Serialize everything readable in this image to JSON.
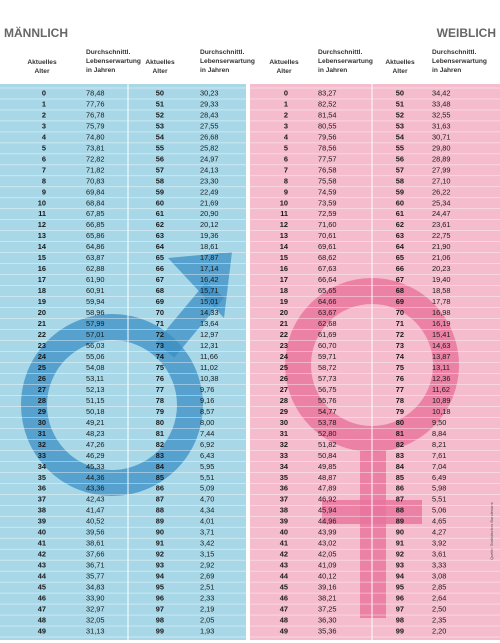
{
  "header": {
    "male_title": "MÄNNLICH",
    "female_title": "WEIBLICH",
    "age_header": [
      "Aktuelles",
      "Alter"
    ],
    "life_header": [
      "Durchschnittl.",
      "Lebenserwartung",
      "in Jahren"
    ]
  },
  "source": "Quelle: Statistisches Bundesamt",
  "male": {
    "rows": [
      [
        0,
        "78,48",
        50,
        "30,23"
      ],
      [
        1,
        "77,76",
        51,
        "29,33"
      ],
      [
        2,
        "76,78",
        52,
        "28,43"
      ],
      [
        3,
        "75,79",
        53,
        "27,55"
      ],
      [
        4,
        "74,80",
        54,
        "26,68"
      ],
      [
        5,
        "73,81",
        55,
        "25,82"
      ],
      [
        6,
        "72,82",
        56,
        "24,97"
      ],
      [
        7,
        "71,82",
        57,
        "24,13"
      ],
      [
        8,
        "70,83",
        58,
        "23,30"
      ],
      [
        9,
        "69,84",
        59,
        "22,49"
      ],
      [
        10,
        "68,84",
        60,
        "21,69"
      ],
      [
        11,
        "67,85",
        61,
        "20,90"
      ],
      [
        12,
        "66,85",
        62,
        "20,12"
      ],
      [
        13,
        "65,86",
        63,
        "19,36"
      ],
      [
        14,
        "64,86",
        64,
        "18,61"
      ],
      [
        15,
        "63,87",
        65,
        "17,87"
      ],
      [
        16,
        "62,88",
        66,
        "17,14"
      ],
      [
        17,
        "61,90",
        67,
        "16,42"
      ],
      [
        18,
        "60,91",
        68,
        "15,71"
      ],
      [
        19,
        "59,94",
        69,
        "15,01"
      ],
      [
        20,
        "58,96",
        70,
        "14,33"
      ],
      [
        21,
        "57,99",
        71,
        "13,64"
      ],
      [
        22,
        "57,01",
        72,
        "12,97"
      ],
      [
        23,
        "56,03",
        73,
        "12,31"
      ],
      [
        24,
        "55,06",
        74,
        "11,66"
      ],
      [
        25,
        "54,08",
        75,
        "11,02"
      ],
      [
        26,
        "53,11",
        76,
        "10,38"
      ],
      [
        27,
        "52,13",
        77,
        "9,76"
      ],
      [
        28,
        "51,15",
        78,
        "9,16"
      ],
      [
        29,
        "50,18",
        79,
        "8,57"
      ],
      [
        30,
        "49,21",
        80,
        "8,00"
      ],
      [
        31,
        "48,23",
        81,
        "7,44"
      ],
      [
        32,
        "47,26",
        82,
        "6,92"
      ],
      [
        33,
        "46,29",
        83,
        "6,43"
      ],
      [
        34,
        "45,33",
        84,
        "5,95"
      ],
      [
        35,
        "44,36",
        85,
        "5,51"
      ],
      [
        36,
        "43,36",
        86,
        "5,09"
      ],
      [
        37,
        "42,43",
        87,
        "4,70"
      ],
      [
        38,
        "41,47",
        88,
        "4,34"
      ],
      [
        39,
        "40,52",
        89,
        "4,01"
      ],
      [
        40,
        "39,56",
        90,
        "3,71"
      ],
      [
        41,
        "38,61",
        91,
        "3,42"
      ],
      [
        42,
        "37,66",
        92,
        "3,15"
      ],
      [
        43,
        "36,71",
        93,
        "2,92"
      ],
      [
        44,
        "35,77",
        94,
        "2,69"
      ],
      [
        45,
        "34,83",
        95,
        "2,51"
      ],
      [
        46,
        "33,90",
        96,
        "2,33"
      ],
      [
        47,
        "32,97",
        97,
        "2,19"
      ],
      [
        48,
        "32,05",
        98,
        "2,05"
      ],
      [
        49,
        "31,13",
        99,
        "1,93"
      ]
    ]
  },
  "female": {
    "rows": [
      [
        0,
        "83,27",
        50,
        "34,42"
      ],
      [
        1,
        "82,52",
        51,
        "33,48"
      ],
      [
        2,
        "81,54",
        52,
        "32,55"
      ],
      [
        3,
        "80,55",
        53,
        "31,63"
      ],
      [
        4,
        "79,56",
        54,
        "30,71"
      ],
      [
        5,
        "78,56",
        55,
        "29,80"
      ],
      [
        6,
        "77,57",
        56,
        "28,89"
      ],
      [
        7,
        "76,58",
        57,
        "27,99"
      ],
      [
        8,
        "75,58",
        58,
        "27,10"
      ],
      [
        9,
        "74,59",
        59,
        "26,22"
      ],
      [
        10,
        "73,59",
        60,
        "25,34"
      ],
      [
        11,
        "72,59",
        61,
        "24,47"
      ],
      [
        12,
        "71,60",
        62,
        "23,61"
      ],
      [
        13,
        "70,61",
        63,
        "22,75"
      ],
      [
        14,
        "69,61",
        64,
        "21,90"
      ],
      [
        15,
        "68,62",
        65,
        "21,06"
      ],
      [
        16,
        "67,63",
        66,
        "20,23"
      ],
      [
        17,
        "66,64",
        67,
        "19,40"
      ],
      [
        18,
        "65,65",
        68,
        "18,58"
      ],
      [
        19,
        "64,66",
        69,
        "17,78"
      ],
      [
        20,
        "63,67",
        70,
        "16,98"
      ],
      [
        21,
        "62,68",
        71,
        "16,19"
      ],
      [
        22,
        "61,69",
        72,
        "15,41"
      ],
      [
        23,
        "60,70",
        73,
        "14,63"
      ],
      [
        24,
        "59,71",
        74,
        "13,87"
      ],
      [
        25,
        "58,72",
        75,
        "13,11"
      ],
      [
        26,
        "57,73",
        76,
        "12,36"
      ],
      [
        27,
        "56,75",
        77,
        "11,62"
      ],
      [
        28,
        "55,76",
        78,
        "10,89"
      ],
      [
        29,
        "54,77",
        79,
        "10,18"
      ],
      [
        30,
        "53,78",
        80,
        "9,50"
      ],
      [
        31,
        "52,80",
        81,
        "8,84"
      ],
      [
        32,
        "51,82",
        82,
        "8,21"
      ],
      [
        33,
        "50,84",
        83,
        "7,61"
      ],
      [
        34,
        "49,85",
        84,
        "7,04"
      ],
      [
        35,
        "48,87",
        85,
        "6,49"
      ],
      [
        36,
        "47,89",
        86,
        "5,98"
      ],
      [
        37,
        "46,92",
        87,
        "5,51"
      ],
      [
        38,
        "45,94",
        88,
        "5,06"
      ],
      [
        39,
        "44,96",
        89,
        "4,65"
      ],
      [
        40,
        "43,99",
        90,
        "4,27"
      ],
      [
        41,
        "43,02",
        91,
        "3,92"
      ],
      [
        42,
        "42,05",
        92,
        "3,61"
      ],
      [
        43,
        "41,09",
        93,
        "3,33"
      ],
      [
        44,
        "40,12",
        94,
        "3,08"
      ],
      [
        45,
        "39,16",
        95,
        "2,85"
      ],
      [
        46,
        "38,21",
        96,
        "2,64"
      ],
      [
        47,
        "37,25",
        97,
        "2,50"
      ],
      [
        48,
        "36,30",
        98,
        "2,35"
      ],
      [
        49,
        "35,36",
        99,
        "2,20"
      ]
    ]
  }
}
